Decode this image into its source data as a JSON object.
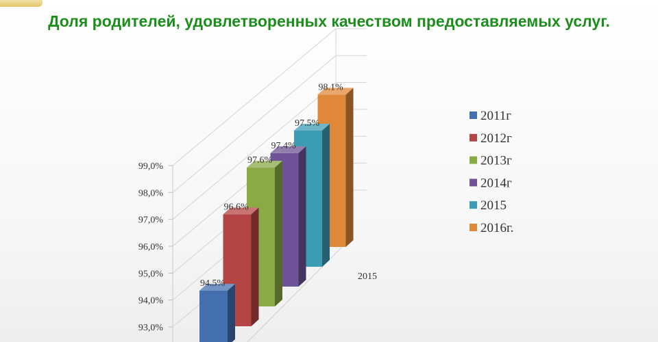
{
  "title": "Доля родителей, удовлетворенных качеством предоставляемых услуг.",
  "chart_data": {
    "type": "bar",
    "style": "3d-column",
    "title": "Доля родителей, удовлетворенных качеством предоставляемых услуг.",
    "categories": [
      "2015"
    ],
    "series": [
      {
        "name": "2011г",
        "value": 94.5,
        "label": "94.5%",
        "color": "#4470b0"
      },
      {
        "name": "2012г",
        "value": 96.6,
        "label": "96.6%",
        "color": "#b54544"
      },
      {
        "name": "2013г",
        "value": 97.6,
        "label": "97.6%",
        "color": "#8aaa46"
      },
      {
        "name": "2014г",
        "value": 97.4,
        "label": "97.4%",
        "color": "#6e5496"
      },
      {
        "name": "2015",
        "value": 97.5,
        "label": "97.5%",
        "color": "#3c9cb4"
      },
      {
        "name": "2016г.",
        "value": 98.1,
        "label": "98.1%",
        "color": "#e0883a"
      }
    ],
    "y_ticks": [
      "93,0%",
      "94,0%",
      "95,0%",
      "96,0%",
      "97,0%",
      "98,0%",
      "99,0%"
    ],
    "ylim": [
      93,
      99
    ],
    "grid": true,
    "legend": "right"
  }
}
